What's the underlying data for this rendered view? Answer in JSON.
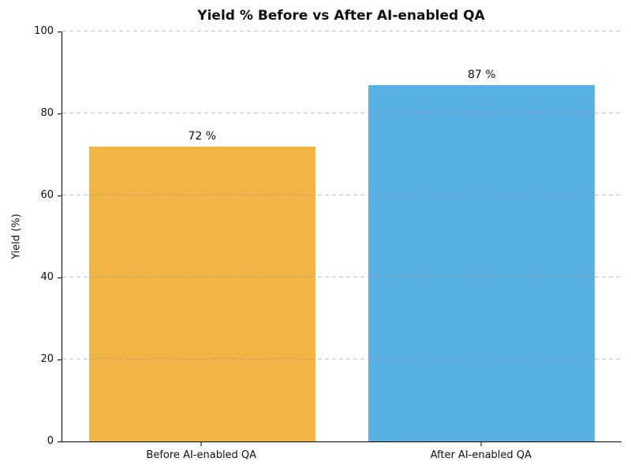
{
  "chart_data": {
    "type": "bar",
    "title": "Yield % Before vs After AI-enabled QA",
    "xlabel": "",
    "ylabel": "Yield (%)",
    "categories": [
      "Before AI-enabled QA",
      "After AI-enabled QA"
    ],
    "values": [
      72,
      87
    ],
    "bar_value_labels": [
      "72 %",
      "87 %"
    ],
    "bar_colors": [
      "#F2B444",
      "#58B1E2"
    ],
    "ylim": [
      0,
      100
    ],
    "yticks": [
      0,
      20,
      40,
      60,
      80,
      100
    ],
    "grid": "horizontal-dashed",
    "grid_color": "#cccccc",
    "legend": "none",
    "background_color": "#ffffff"
  }
}
